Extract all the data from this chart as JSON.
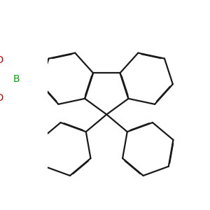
{
  "bg_color": "#ffffff",
  "bond_color": "#1a1a1a",
  "B_color": "#00aa00",
  "O_color": "#cc0000",
  "lw": 1.6,
  "dbo": 0.015,
  "fsB": 10,
  "fsOH": 10,
  "figsize": [
    3.0,
    3.0
  ],
  "dpi": 100,
  "xlim": [
    -2.2,
    3.8
  ],
  "ylim": [
    -3.8,
    2.8
  ]
}
